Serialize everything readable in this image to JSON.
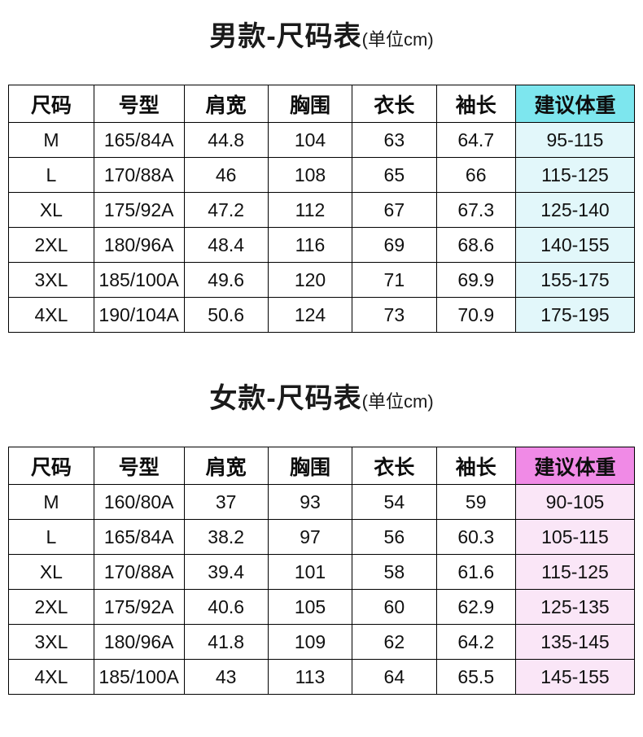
{
  "chart_data": [
    {
      "type": "table",
      "title": "男款-尺码表",
      "unit": "(单位cm)",
      "accent_header_bg": "#7de6ee",
      "accent_cell_bg": "#e2f7fa",
      "headers": [
        "尺码",
        "号型",
        "肩宽",
        "胸围",
        "衣长",
        "袖长",
        "建议体重"
      ],
      "rows": [
        [
          "M",
          "165/84A",
          "44.8",
          "104",
          "63",
          "64.7",
          "95-115"
        ],
        [
          "L",
          "170/88A",
          "46",
          "108",
          "65",
          "66",
          "115-125"
        ],
        [
          "XL",
          "175/92A",
          "47.2",
          "112",
          "67",
          "67.3",
          "125-140"
        ],
        [
          "2XL",
          "180/96A",
          "48.4",
          "116",
          "69",
          "68.6",
          "140-155"
        ],
        [
          "3XL",
          "185/100A",
          "49.6",
          "120",
          "71",
          "69.9",
          "155-175"
        ],
        [
          "4XL",
          "190/104A",
          "50.6",
          "124",
          "73",
          "70.9",
          "175-195"
        ]
      ]
    },
    {
      "type": "table",
      "title": "女款-尺码表",
      "unit": "(单位cm)",
      "accent_header_bg": "#f08ae6",
      "accent_cell_bg": "#fae6f7",
      "headers": [
        "尺码",
        "号型",
        "肩宽",
        "胸围",
        "衣长",
        "袖长",
        "建议体重"
      ],
      "rows": [
        [
          "M",
          "160/80A",
          "37",
          "93",
          "54",
          "59",
          "90-105"
        ],
        [
          "L",
          "165/84A",
          "38.2",
          "97",
          "56",
          "60.3",
          "105-115"
        ],
        [
          "XL",
          "170/88A",
          "39.4",
          "101",
          "58",
          "61.6",
          "115-125"
        ],
        [
          "2XL",
          "175/92A",
          "40.6",
          "105",
          "60",
          "62.9",
          "125-135"
        ],
        [
          "3XL",
          "180/96A",
          "41.8",
          "109",
          "62",
          "64.2",
          "135-145"
        ],
        [
          "4XL",
          "185/100A",
          "43",
          "113",
          "64",
          "65.5",
          "145-155"
        ]
      ]
    }
  ]
}
